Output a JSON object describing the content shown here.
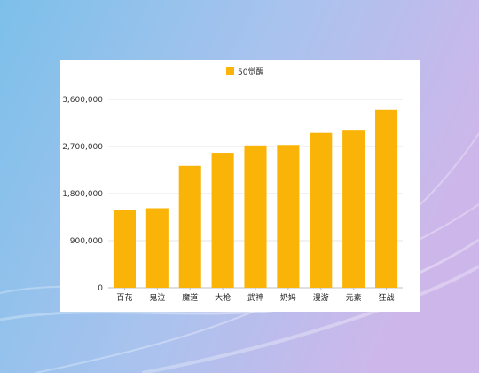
{
  "colors": {
    "bar": "#FAB407",
    "grid": "#e6e6e6",
    "axis": "#bfbfbf",
    "background_start": "#7cc0ea",
    "background_end": "#cdb7ea"
  },
  "chart_data": {
    "type": "bar",
    "categories": [
      "百花",
      "鬼泣",
      "魔道",
      "大枪",
      "武神",
      "奶妈",
      "漫游",
      "元素",
      "狂战"
    ],
    "series": [
      {
        "name": "50觉醒",
        "values": [
          1480000,
          1520000,
          2330000,
          2580000,
          2720000,
          2730000,
          2960000,
          3020000,
          3400000
        ]
      }
    ],
    "yticks": [
      0,
      900000,
      1800000,
      2700000,
      3600000
    ],
    "ytick_labels": [
      "0",
      "900,000",
      "1,800,000",
      "2,700,000",
      "3,600,000"
    ],
    "ylim": [
      0,
      3600000
    ],
    "grid": true,
    "legend_position": "top-center"
  }
}
